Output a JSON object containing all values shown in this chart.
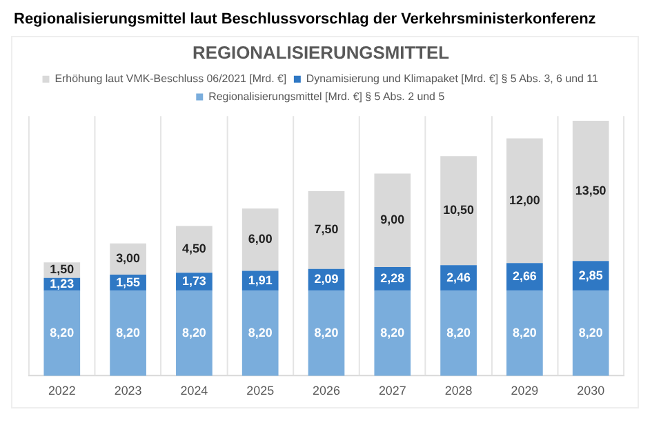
{
  "chart_data": {
    "type": "bar",
    "title": "Regionalisierungsmittel laut Beschlussvorschlag der Verkehrsministerkonferenz",
    "subtitle": "REGIONALISIERUNGSMITTEL",
    "stacked": true,
    "relative": false,
    "categories": [
      "2022",
      "2023",
      "2024",
      "2025",
      "2026",
      "2027",
      "2028",
      "2029",
      "2030"
    ],
    "series": [
      {
        "name": "Regionalisierungsmittel [Mrd. €] § 5 Abs. 2 und 5",
        "color": "#7aaddc",
        "values": [
          8.2,
          8.2,
          8.2,
          8.2,
          8.2,
          8.2,
          8.2,
          8.2,
          8.2
        ],
        "value_labels": [
          "8,20",
          "8,20",
          "8,20",
          "8,20",
          "8,20",
          "8,20",
          "8,20",
          "8,20",
          "8,20"
        ]
      },
      {
        "name": "Dynamisierung und Klimapaket [Mrd. €] § 5 Abs. 3, 6 und 11",
        "color": "#2f78c4",
        "values": [
          1.23,
          1.55,
          1.73,
          1.91,
          2.09,
          2.28,
          2.46,
          2.66,
          2.85
        ],
        "value_labels": [
          "1,23",
          "1,55",
          "1,73",
          "1,91",
          "2,09",
          "2,28",
          "2,46",
          "2,66",
          "2,85"
        ]
      },
      {
        "name": "Erhöhung laut VMK-Beschluss 06/2021 [Mrd. €]",
        "color": "#d9d9d9",
        "values": [
          1.5,
          3.0,
          4.5,
          6.0,
          7.5,
          9.0,
          10.5,
          12.0,
          13.5
        ],
        "value_labels": [
          "1,50",
          "3,00",
          "4,50",
          "6,00",
          "7,50",
          "9,00",
          "10,50",
          "12,00",
          "13,50"
        ]
      }
    ],
    "grid": "x",
    "legend": "top"
  }
}
